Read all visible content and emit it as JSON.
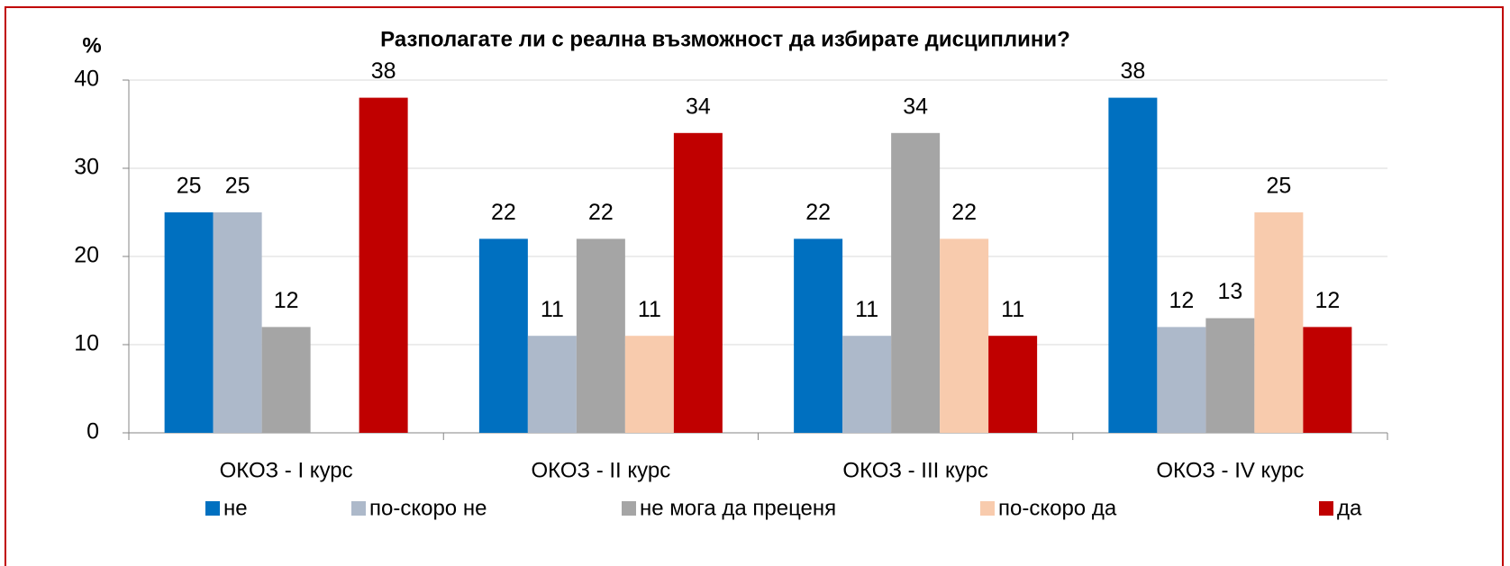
{
  "chart_data": {
    "type": "bar",
    "title": "Разполагате ли с реална възможност да избирате дисциплини?",
    "y_label": "%",
    "categories": [
      "ОКОЗ - I курс",
      "ОКОЗ - II курс",
      "ОКОЗ - III курс",
      "ОКОЗ - IV курс"
    ],
    "series": [
      {
        "name": "не",
        "color": "#0070c0",
        "values": [
          25,
          22,
          22,
          38
        ]
      },
      {
        "name": "по-скоро не",
        "color": "#adb9ca",
        "values": [
          25,
          11,
          11,
          12
        ]
      },
      {
        "name": "не мога да преценя",
        "color": "#a5a5a5",
        "values": [
          12,
          22,
          34,
          13
        ]
      },
      {
        "name": "по-скоро да",
        "color": "#f8cbad",
        "values": [
          null,
          11,
          22,
          25
        ]
      },
      {
        "name": "да",
        "color": "#c00000",
        "values": [
          38,
          34,
          11,
          12
        ]
      }
    ],
    "ylim": [
      0,
      40
    ],
    "yticks": [
      0,
      10,
      20,
      30,
      40
    ],
    "grid": true,
    "legend": "bottom"
  }
}
